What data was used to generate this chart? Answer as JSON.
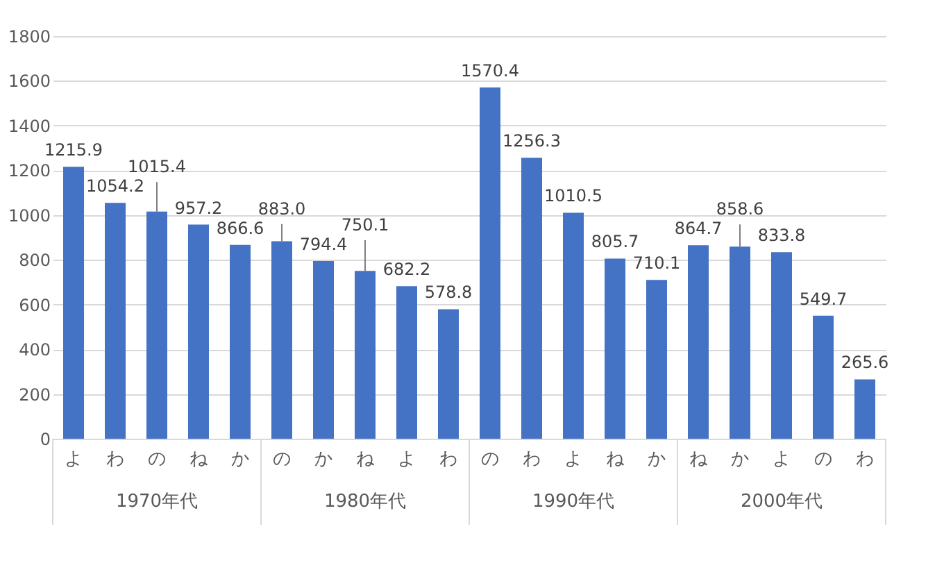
{
  "chart_data": {
    "type": "bar",
    "categories": [
      "よ",
      "わ",
      "の",
      "ね",
      "か",
      "の",
      "か",
      "ね",
      "よ",
      "わ",
      "の",
      "わ",
      "よ",
      "ね",
      "か",
      "ね",
      "か",
      "よ",
      "の",
      "わ"
    ],
    "values": [
      1215.9,
      1054.2,
      1015.4,
      957.2,
      866.6,
      883.0,
      794.4,
      750.1,
      682.2,
      578.8,
      1570.4,
      1256.3,
      1010.5,
      805.7,
      710.1,
      864.7,
      858.6,
      833.8,
      549.7,
      265.6
    ],
    "value_labels": [
      "1215.9",
      "1054.2",
      "1015.4",
      "957.2",
      "866.6",
      "883.0",
      "794.4",
      "750.1",
      "682.2",
      "578.8",
      "1570.4",
      "1256.3",
      "1010.5",
      "805.7",
      "710.1",
      "864.7",
      "858.6",
      "833.8",
      "549.7",
      "265.6"
    ],
    "color": "#4472c4",
    "ylim": [
      0,
      1800
    ],
    "yticks": [
      0,
      200,
      400,
      600,
      800,
      1000,
      1200,
      1400,
      1600,
      1800
    ],
    "grid": "y",
    "annotations": [
      "1970年代",
      "1980年代",
      "1990年代",
      "2000年代"
    ]
  }
}
